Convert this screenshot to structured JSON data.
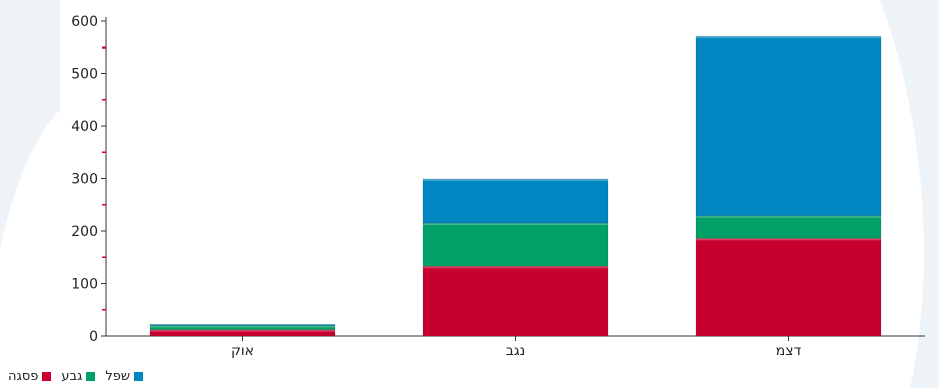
{
  "chart_data": {
    "type": "bar",
    "stacked": true,
    "categories": [
      "אוק",
      "נגב",
      "דצמ"
    ],
    "series": [
      {
        "name": "פסגה",
        "values": [
          12,
          133,
          186
        ],
        "color": "#c8002f"
      },
      {
        "name": "גבע",
        "values": [
          8,
          82,
          43
        ],
        "color": "#00a066"
      },
      {
        "name": "שפל",
        "values": [
          2,
          84,
          342
        ],
        "color": "#0086c0"
      }
    ],
    "ylim": [
      0,
      600
    ],
    "yticks": [
      "0",
      "100",
      "200",
      "300",
      "400",
      "500",
      "600"
    ],
    "grid": false,
    "legend_placement": "bottom-left"
  },
  "legend": {
    "items": [
      {
        "label": "פסגה",
        "color": "#c8002f"
      },
      {
        "label": "גבע",
        "color": "#00a066"
      },
      {
        "label": "שפל",
        "color": "#0086c0"
      }
    ]
  }
}
